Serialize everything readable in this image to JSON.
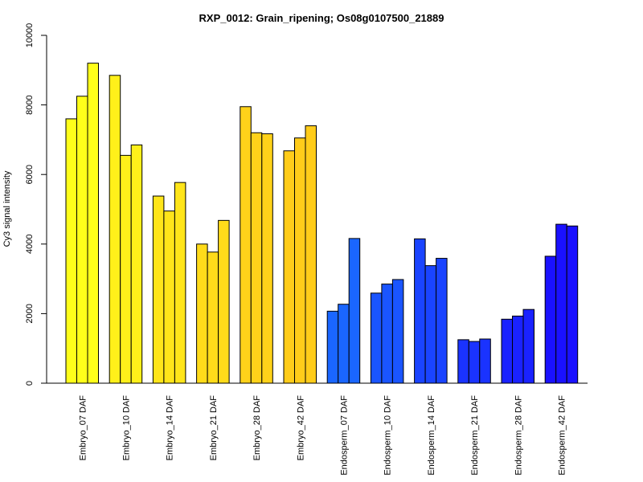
{
  "chart_data": {
    "type": "bar",
    "title": "RXP_0012: Grain_ripening; Os08g0107500_21889",
    "xlabel": "",
    "ylabel": "Cy3 signal intensity",
    "ylim": [
      0,
      10000
    ],
    "yticks": [
      "0",
      "2000",
      "4000",
      "6000",
      "8000",
      "10000"
    ],
    "grid": false,
    "categories": [
      "Embryo_07 DAF",
      "Embryo_10 DAF",
      "Embryo_14 DAF",
      "Embryo_21 DAF",
      "Embryo_28 DAF",
      "Embryo_42 DAF",
      "Endosperm_07 DAF",
      "Endosperm_10 DAF",
      "Endosperm_14 DAF",
      "Endosperm_21 DAF",
      "Endosperm_28 DAF",
      "Endosperm_42 DAF"
    ],
    "replicates_per_category": 3,
    "values": [
      [
        7600,
        8250,
        9200
      ],
      [
        8850,
        6550,
        6850
      ],
      [
        5380,
        4950,
        5770
      ],
      [
        4000,
        3770,
        4680
      ],
      [
        7950,
        7200,
        7170
      ],
      [
        6680,
        7050,
        7400
      ],
      [
        2070,
        2270,
        4160
      ],
      [
        2590,
        2850,
        2980
      ],
      [
        4150,
        3380,
        3590
      ],
      [
        1250,
        1200,
        1270
      ],
      [
        1840,
        1930,
        2120
      ],
      [
        3650,
        4570,
        4520
      ]
    ],
    "colors": [
      "#FFFF1A",
      "#FFF01A",
      "#FFE51A",
      "#FFDB1A",
      "#FFD21A",
      "#FFCC1A",
      "#1A66FF",
      "#1A55FF",
      "#1A44FF",
      "#1A33FF",
      "#1A22FF",
      "#1A11FF"
    ]
  }
}
